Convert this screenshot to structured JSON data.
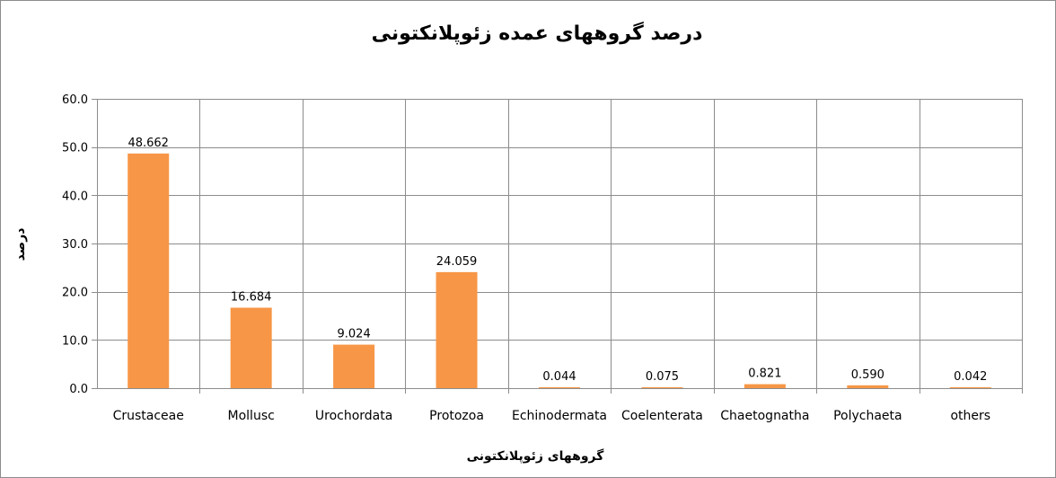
{
  "chart_data": {
    "type": "bar",
    "title": "درصد گروههای عمده زئوپلانکتونی",
    "xlabel": "گروههای زئوپلانکتونی",
    "ylabel": "درصد",
    "categories": [
      "Crustaceae",
      "Mollusc",
      "Urochordata",
      "Protozoa",
      "Echinodermata",
      "Coelenterata",
      "Chaetognatha",
      "Polychaeta",
      "others"
    ],
    "values": [
      48.662,
      16.684,
      9.024,
      24.059,
      0.044,
      0.075,
      0.821,
      0.59,
      0.042
    ],
    "value_labels": [
      "48.662",
      "16.684",
      "9.024",
      "24.059",
      "0.044",
      "0.075",
      "0.821",
      "0.590",
      "0.042"
    ],
    "ylim": [
      0,
      60
    ],
    "yticks": [
      0,
      10,
      20,
      30,
      40,
      50,
      60
    ],
    "ytick_labels": [
      "0.0",
      "10.0",
      "20.0",
      "30.0",
      "40.0",
      "50.0",
      "60.0"
    ],
    "grid": true,
    "bar_color": "#f79646",
    "grid_color": "#8c8c8c"
  }
}
